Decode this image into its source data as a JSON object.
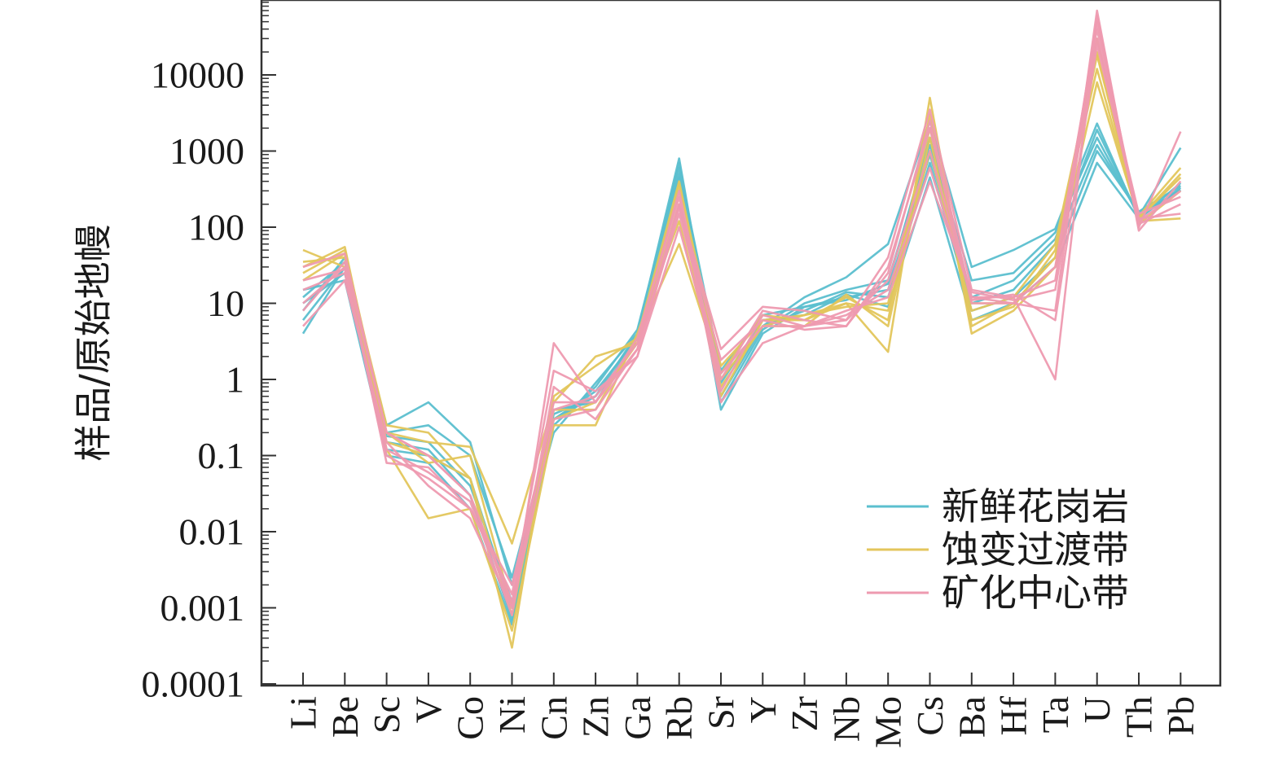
{
  "chart_data": {
    "type": "line",
    "title": "",
    "xlabel": "",
    "ylabel": "样品/原始地幔",
    "y_scale": "log",
    "ylim": [
      0.0001,
      100000
    ],
    "y_ticks": [
      {
        "value": 10000,
        "label": "10000"
      },
      {
        "value": 1000,
        "label": "1000"
      },
      {
        "value": 100,
        "label": "100"
      },
      {
        "value": 10,
        "label": "10"
      },
      {
        "value": 1,
        "label": "1"
      },
      {
        "value": 0.1,
        "label": "0.1"
      },
      {
        "value": 0.01,
        "label": "0.01"
      },
      {
        "value": 0.001,
        "label": "0.001"
      },
      {
        "value": 0.0001,
        "label": "0.0001"
      }
    ],
    "categories": [
      "Li",
      "Be",
      "Sc",
      "V",
      "Co",
      "Ni",
      "Cn",
      "Zn",
      "Ga",
      "Rb",
      "Sr",
      "Y",
      "Zr",
      "Nb",
      "Mo",
      "Cs",
      "Ba",
      "Hf",
      "Ta",
      "U",
      "Th",
      "Pb"
    ],
    "grid": false,
    "legend_position": "bottom-right",
    "groups": [
      {
        "name": "新鲜花岗岩",
        "color": "#5bbfcf",
        "series": [
          [
            4,
            30,
            0.25,
            0.5,
            0.15,
            0.002,
            0.2,
            0.9,
            4,
            800,
            0.6,
            5,
            12,
            22,
            60,
            2500,
            30,
            50,
            95,
            2300,
            130,
            330
          ],
          [
            8,
            40,
            0.2,
            0.25,
            0.1,
            0.0025,
            0.3,
            0.7,
            3.5,
            700,
            0.5,
            4.5,
            10,
            15,
            20,
            1200,
            20,
            25,
            85,
            1500,
            140,
            310
          ],
          [
            12,
            35,
            0.12,
            0.1,
            0.05,
            0.001,
            0.35,
            0.6,
            4,
            500,
            0.4,
            4,
            9,
            12,
            15,
            900,
            10,
            15,
            60,
            1200,
            150,
            300
          ],
          [
            10,
            25,
            0.15,
            0.12,
            0.03,
            0.0007,
            0.4,
            0.5,
            3.8,
            450,
            1,
            5,
            8,
            14,
            12,
            700,
            8,
            12,
            40,
            1000,
            160,
            350
          ],
          [
            15,
            20,
            0.1,
            0.08,
            0.02,
            0.0006,
            0.3,
            0.6,
            3,
            400,
            0.9,
            6,
            7,
            13,
            9,
            450,
            6,
            10,
            30,
            700,
            130,
            380
          ],
          [
            6,
            30,
            0.18,
            0.15,
            0.04,
            0.0012,
            0.25,
            0.8,
            4.5,
            600,
            1.3,
            7,
            9,
            11,
            18,
            1500,
            12,
            20,
            70,
            1900,
            140,
            1100
          ]
        ]
      },
      {
        "name": "蚀变过渡带",
        "color": "#e3c65c",
        "series": [
          [
            50,
            30,
            0.2,
            0.15,
            0.13,
            0.007,
            0.5,
            2,
            3,
            350,
            1.5,
            6,
            7,
            10,
            2.3,
            5000,
            5,
            10,
            40,
            18000,
            140,
            600
          ],
          [
            30,
            55,
            0.15,
            0.1,
            0.05,
            0.0003,
            0.6,
            1.5,
            3.5,
            60,
            1.2,
            7,
            6,
            12,
            6,
            3000,
            4,
            8,
            30,
            8000,
            130,
            450
          ],
          [
            20,
            45,
            0.12,
            0.015,
            0.02,
            0.0005,
            0.25,
            0.25,
            4,
            120,
            0.8,
            5,
            5,
            13,
            5,
            1500,
            6,
            9,
            50,
            12000,
            120,
            130
          ],
          [
            25,
            50,
            0.2,
            0.08,
            0.1,
            0.001,
            0.3,
            0.5,
            3,
            200,
            0.6,
            6,
            6,
            10,
            8,
            1000,
            8,
            12,
            60,
            20000,
            110,
            300
          ],
          [
            35,
            40,
            0.25,
            0.2,
            0.05,
            0.0008,
            0.4,
            0.4,
            3.5,
            400,
            1,
            5,
            7,
            9,
            10,
            2000,
            10,
            10,
            40,
            30000,
            130,
            500
          ]
        ]
      },
      {
        "name": "矿化中心带",
        "color": "#ee9ab0",
        "series": [
          [
            30,
            45,
            0.2,
            0.1,
            0.03,
            0.001,
            3,
            0.5,
            2.5,
            200,
            2.5,
            9,
            8,
            6,
            40,
            3500,
            15,
            12,
            1,
            60000,
            100,
            1800
          ],
          [
            15,
            25,
            0.1,
            0.05,
            0.02,
            0.0015,
            1.3,
            0.7,
            2,
            100,
            1,
            8,
            6,
            5,
            30,
            2000,
            10,
            10,
            8,
            70000,
            90,
            400
          ],
          [
            10,
            30,
            0.08,
            0.07,
            0.02,
            0.002,
            0.4,
            0.6,
            3,
            300,
            0.7,
            7,
            5,
            6,
            20,
            1000,
            12,
            12,
            20,
            50000,
            120,
            300
          ],
          [
            5,
            20,
            0.15,
            0.04,
            0.015,
            0.001,
            0.3,
            0.4,
            2.5,
            150,
            1.2,
            5,
            5,
            7,
            15,
            600,
            12,
            10,
            30,
            40000,
            110,
            200
          ],
          [
            8,
            35,
            0.2,
            0.1,
            0.03,
            0.0012,
            0.5,
            0.5,
            3.5,
            250,
            0.5,
            3,
            5,
            8,
            12,
            400,
            14,
            11,
            15,
            30000,
            150,
            250
          ],
          [
            20,
            28,
            0.12,
            0.06,
            0.025,
            0.0008,
            0.8,
            0.3,
            2,
            180,
            1.8,
            6,
            4.5,
            5,
            25,
            2500,
            11,
            13,
            6,
            25000,
            130,
            150
          ]
        ]
      }
    ]
  }
}
